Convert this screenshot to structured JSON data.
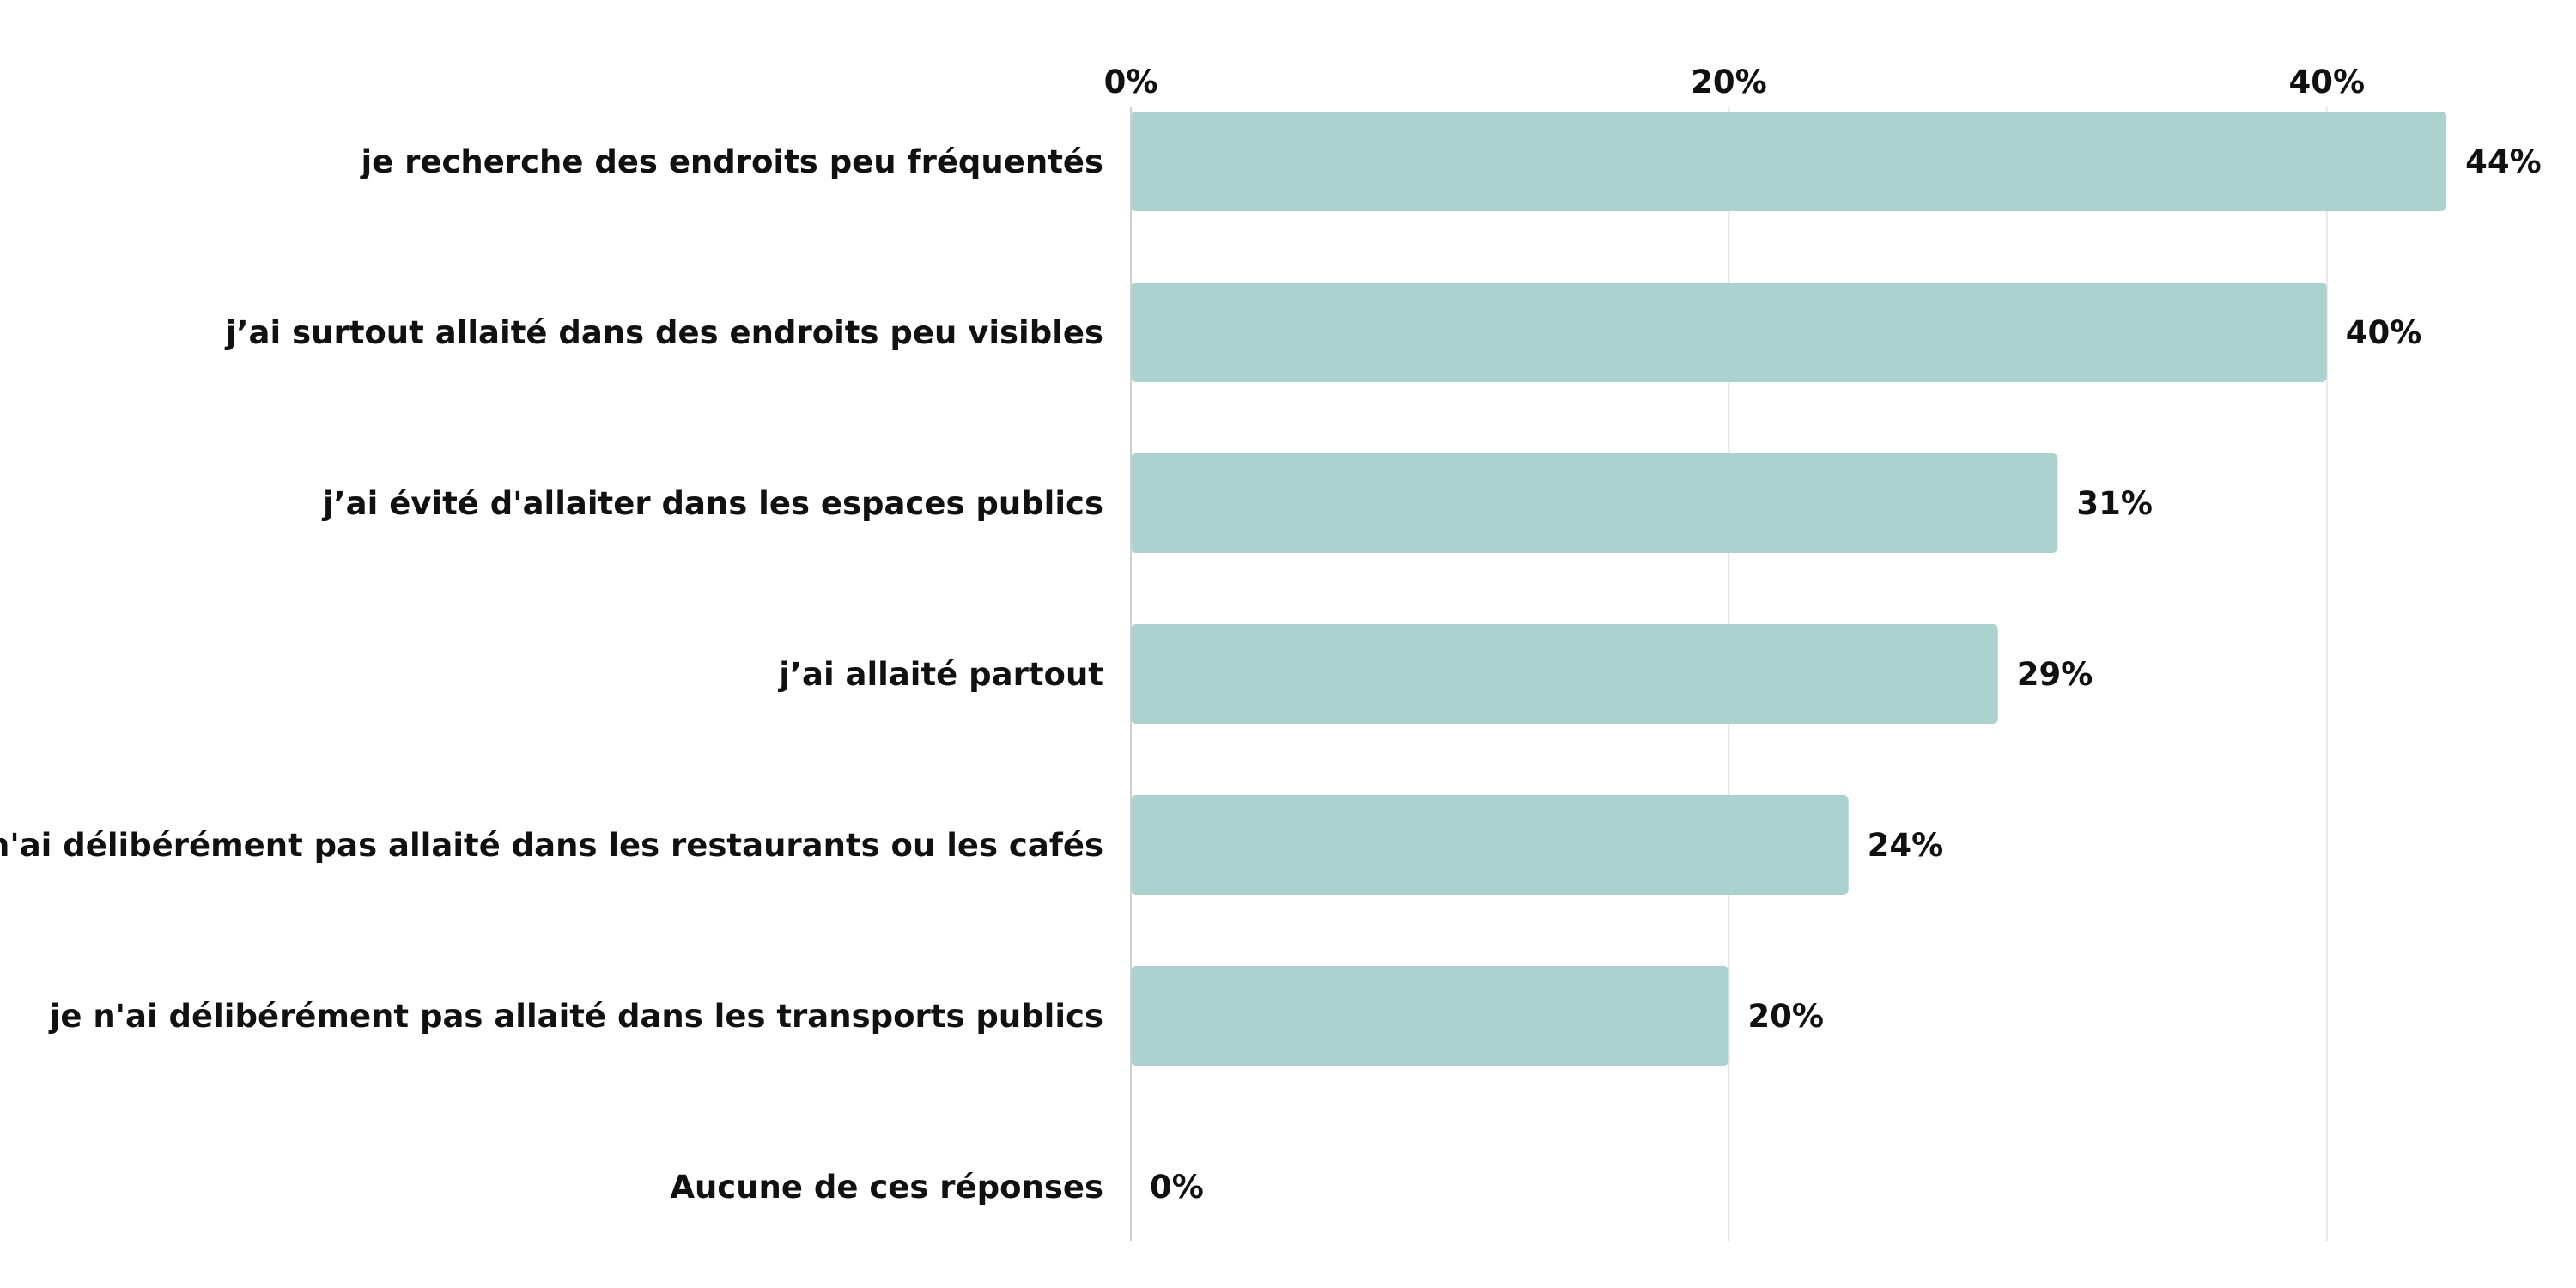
{
  "chart_data": {
    "type": "bar",
    "orientation": "horizontal",
    "title": "",
    "xlabel": "",
    "ylabel": "",
    "xlim": [
      0,
      44
    ],
    "x_ticks": [
      0,
      20,
      40
    ],
    "x_tick_labels": [
      "0%",
      "20%",
      "40%"
    ],
    "tick_position": "top",
    "grid": true,
    "legend": "none",
    "bar_color": "#abd2cf",
    "categories": [
      "je recherche des endroits peu fréquentés",
      "j’ai surtout allaité dans des endroits peu visibles",
      "j’ai évité d'allaiter dans les espaces publics",
      "j’ai allaité partout",
      "je n'ai délibérément pas allaité dans les restaurants ou les cafés",
      "je n'ai délibérément pas allaité dans les transports publics",
      "Aucune de ces réponses"
    ],
    "values": [
      44,
      40,
      31,
      29,
      24,
      20,
      0
    ],
    "value_labels": [
      "44%",
      "40%",
      "31%",
      "29%",
      "24%",
      "20%",
      "0%"
    ]
  }
}
